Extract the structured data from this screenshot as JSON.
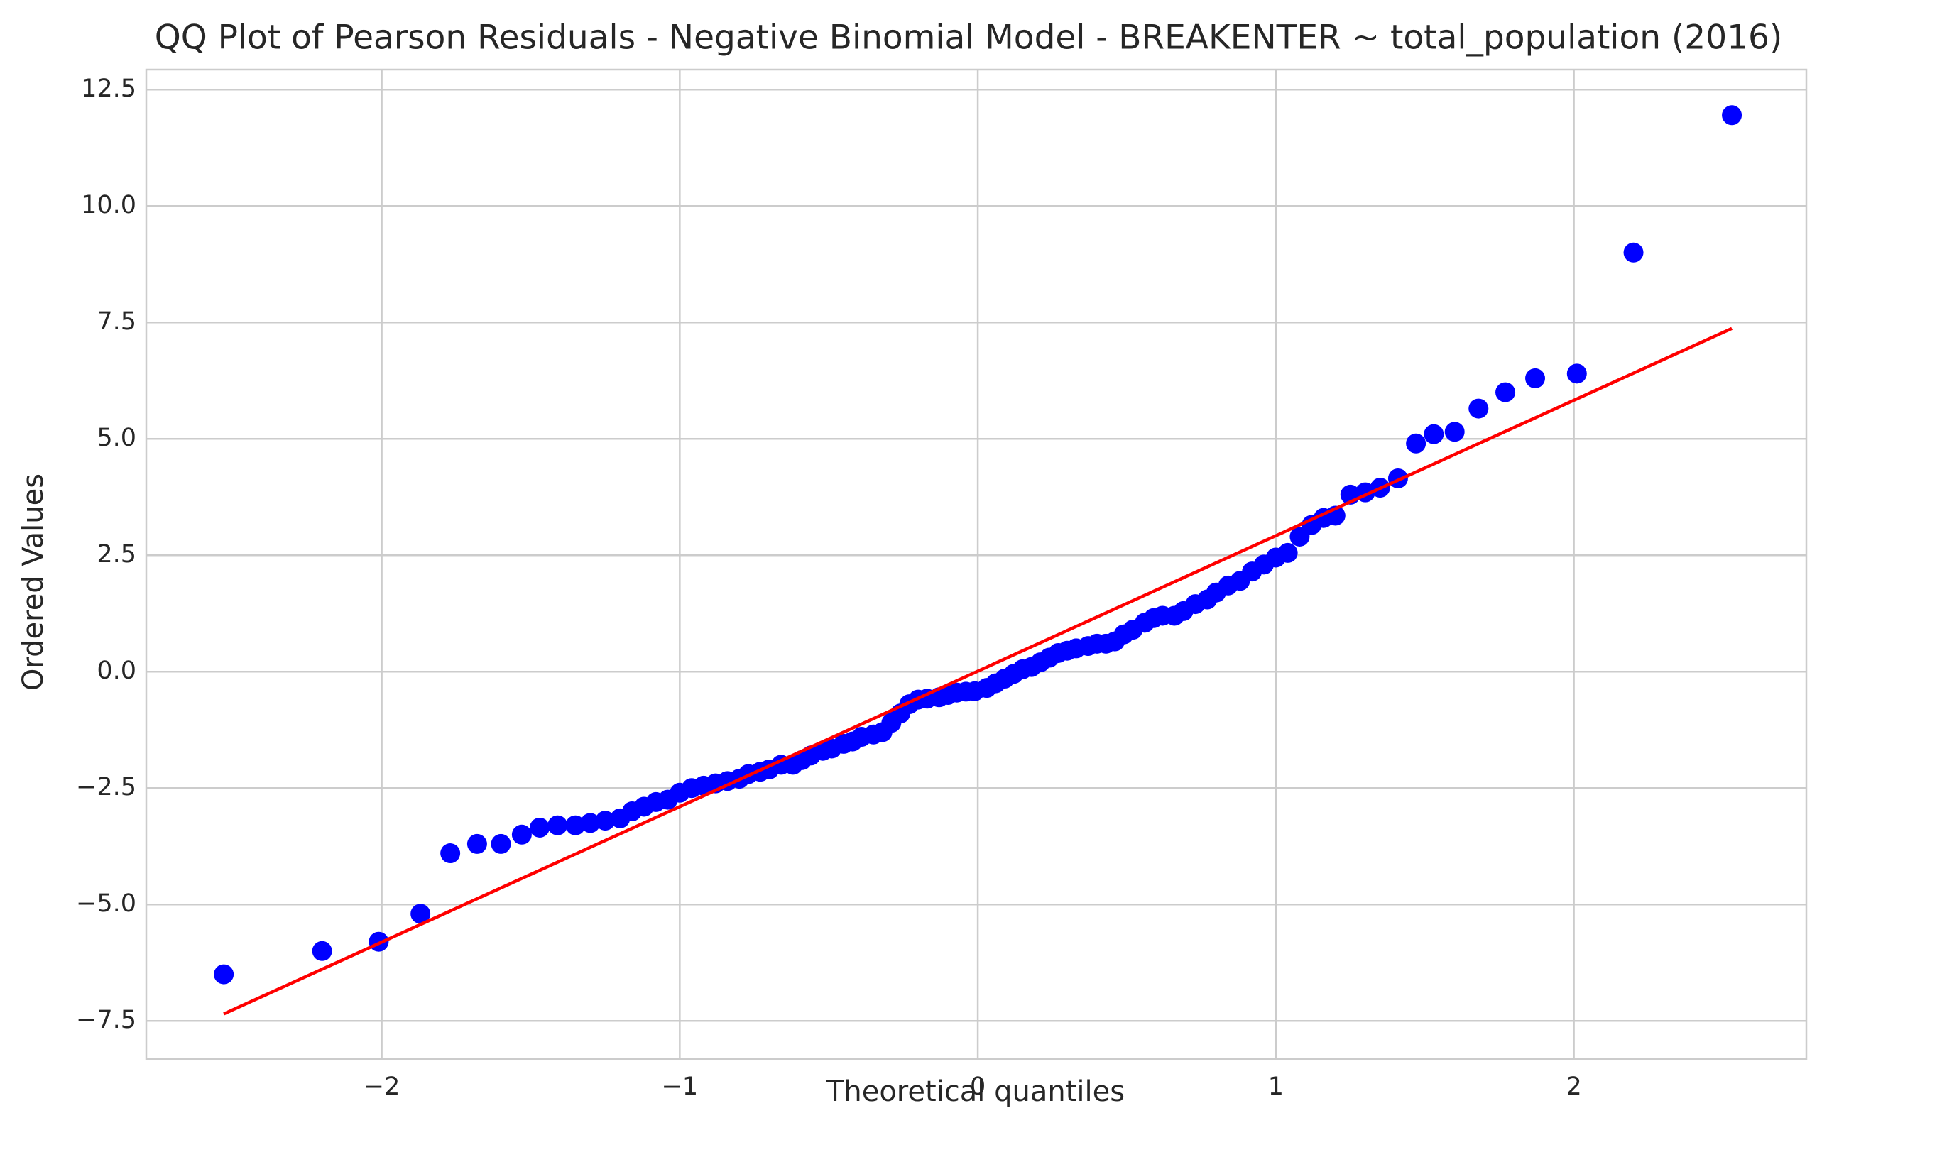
{
  "chart_data": {
    "type": "scatter",
    "title": "QQ Plot of Pearson Residuals - Negative Binomial Model - BREAKENTER ~ total_population (2016)",
    "x_label": "Theoretical quantiles",
    "y_label": "Ordered Values",
    "xlim": [
      -2.79,
      2.78
    ],
    "ylim": [
      -8.32,
      12.93
    ],
    "xticks": [
      {
        "value": -2,
        "label": "−2"
      },
      {
        "value": -1,
        "label": "−1"
      },
      0,
      1,
      2
    ],
    "yticks": [
      {
        "value": -7.5,
        "label": "−7.5"
      },
      {
        "value": -5,
        "label": "−5.0"
      },
      {
        "value": -2.5,
        "label": "−2.5"
      },
      {
        "value": 0,
        "label": "0.0"
      },
      2.5,
      {
        "value": 5,
        "label": "5.0"
      },
      7.5,
      {
        "value": 10,
        "label": "10.0"
      },
      12.5
    ],
    "grid": true,
    "series": [
      {
        "color": "#0000ff",
        "type": "scatter",
        "x": [
          -2.53,
          -2.2,
          -2.01,
          -1.87,
          -1.77,
          -1.68,
          -1.6,
          -1.53,
          -1.47,
          -1.41,
          -1.35,
          -1.3,
          -1.25,
          -1.2,
          -1.16,
          -1.12,
          -1.08,
          -1.04,
          -1.0,
          -0.96,
          -0.92,
          -0.88,
          -0.84,
          -0.8,
          -0.77,
          -0.73,
          -0.7,
          -0.66,
          -0.62,
          -0.59,
          -0.56,
          -0.52,
          -0.49,
          -0.45,
          -0.42,
          -0.39,
          -0.35,
          -0.32,
          -0.29,
          -0.26,
          -0.23,
          -0.2,
          -0.17,
          -0.13,
          -0.1,
          -0.07,
          -0.04,
          -0.01,
          0.03,
          0.06,
          0.09,
          0.12,
          0.15,
          0.18,
          0.21,
          0.24,
          0.27,
          0.3,
          0.33,
          0.37,
          0.4,
          0.43,
          0.46,
          0.49,
          0.52,
          0.56,
          0.59,
          0.62,
          0.66,
          0.69,
          0.73,
          0.77,
          0.8,
          0.84,
          0.88,
          0.92,
          0.96,
          1.0,
          1.04,
          1.08,
          1.12,
          1.16,
          1.2,
          1.25,
          1.3,
          1.35,
          1.41,
          1.47,
          1.53,
          1.6,
          1.68,
          1.77,
          1.87,
          2.01,
          2.2,
          2.53
        ],
        "values": [
          -6.5,
          -6.0,
          -5.8,
          -5.2,
          -3.9,
          -3.7,
          -3.7,
          -3.5,
          -3.35,
          -3.3,
          -3.3,
          -3.25,
          -3.2,
          -3.15,
          -3.0,
          -2.9,
          -2.8,
          -2.75,
          -2.6,
          -2.5,
          -2.45,
          -2.4,
          -2.35,
          -2.3,
          -2.2,
          -2.15,
          -2.1,
          -2.0,
          -2.0,
          -1.9,
          -1.8,
          -1.7,
          -1.65,
          -1.55,
          -1.5,
          -1.4,
          -1.35,
          -1.3,
          -1.1,
          -0.9,
          -0.7,
          -0.6,
          -0.58,
          -0.55,
          -0.5,
          -0.45,
          -0.43,
          -0.42,
          -0.35,
          -0.25,
          -0.15,
          -0.05,
          0.05,
          0.1,
          0.2,
          0.3,
          0.4,
          0.45,
          0.5,
          0.55,
          0.6,
          0.6,
          0.65,
          0.8,
          0.9,
          1.05,
          1.15,
          1.2,
          1.2,
          1.3,
          1.45,
          1.55,
          1.7,
          1.85,
          1.95,
          2.15,
          2.3,
          2.45,
          2.55,
          2.9,
          3.15,
          3.3,
          3.35,
          3.8,
          3.85,
          3.95,
          4.15,
          4.9,
          5.1,
          5.15,
          5.65,
          6.0,
          6.3,
          6.4,
          9.0,
          11.95
        ]
      },
      {
        "color": "#ff0000",
        "type": "line",
        "x": [
          -2.53,
          2.53
        ],
        "values": [
          -7.35,
          7.37
        ]
      }
    ]
  }
}
